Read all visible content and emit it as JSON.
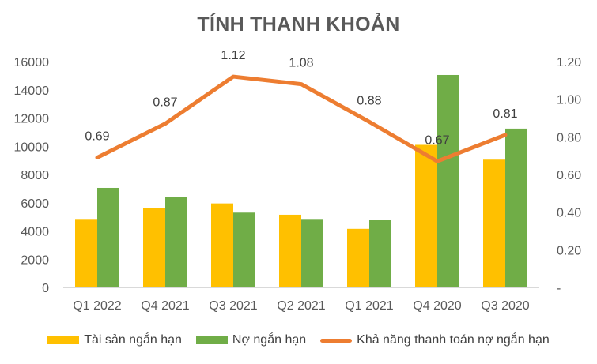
{
  "chart_data": {
    "type": "bar",
    "title": "TÍNH THANH KHOẢN",
    "categories": [
      "Q1 2022",
      "Q4 2021",
      "Q3 2021",
      "Q2 2021",
      "Q1 2021",
      "Q4 2020",
      "Q3 2020"
    ],
    "series": [
      {
        "name": "Tài sản ngắn hạn",
        "type": "bar",
        "axis": "left",
        "color": "#FFC000",
        "values": [
          4850,
          5600,
          5950,
          5150,
          4150,
          10100,
          9050
        ]
      },
      {
        "name": "Nợ ngắn hạn",
        "type": "bar",
        "axis": "left",
        "color": "#70AD47",
        "values": [
          7050,
          6400,
          5300,
          4850,
          4800,
          15050,
          11250
        ]
      },
      {
        "name": "Khả năng thanh toán nợ ngắn hạn",
        "type": "line",
        "axis": "right",
        "color": "#ED7D31",
        "values": [
          0.69,
          0.87,
          1.12,
          1.08,
          0.88,
          0.67,
          0.81
        ],
        "labels": [
          "0.69",
          "0.87",
          "1.12",
          "1.08",
          "0.88",
          "0.67",
          "0.81"
        ]
      }
    ],
    "y_left": {
      "ylim": [
        0,
        16000
      ],
      "ticks": [
        "0",
        "2000",
        "4000",
        "6000",
        "8000",
        "10000",
        "12000",
        "14000",
        "16000"
      ]
    },
    "y_right": {
      "ylim": [
        0,
        1.2
      ],
      "ticks": [
        "-",
        "0.20",
        "0.40",
        "0.60",
        "0.80",
        "1.00",
        "1.20"
      ]
    },
    "grid": false,
    "legend_position": "bottom"
  }
}
